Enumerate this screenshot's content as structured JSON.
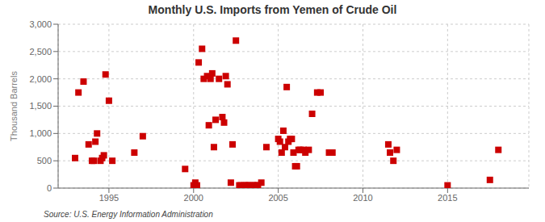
{
  "chart_data": {
    "type": "scatter",
    "title": "Monthly U.S. Imports from Yemen of Crude Oil",
    "ylabel": "Thousand Barrels",
    "annotations": [
      "Source: U.S. Energy Information Administration"
    ],
    "color": "#cc0000",
    "marker": "square",
    "grid": true,
    "xlim": [
      1992.0,
      2019.8
    ],
    "ylim": [
      0,
      3000
    ],
    "xticks": [
      1995,
      2000,
      2005,
      2010,
      2015
    ],
    "yticks": [
      0,
      500,
      {
        "value": 1000,
        "label": "1,000"
      },
      {
        "value": 1500,
        "label": "1,500"
      },
      {
        "value": 2000,
        "label": "2,000"
      },
      {
        "value": 2500,
        "label": "2,500"
      },
      {
        "value": 3000,
        "label": "3,000"
      }
    ],
    "x": [
      1993.0,
      1993.2,
      1993.5,
      1993.8,
      1994.0,
      1994.1,
      1994.2,
      1994.3,
      1994.5,
      1994.6,
      1994.7,
      1994.8,
      1995.0,
      1995.2,
      1996.5,
      1997.0,
      1999.5,
      2000.0,
      2000.1,
      2000.2,
      2000.3,
      2000.5,
      2000.6,
      2000.8,
      2000.9,
      2001.0,
      2001.1,
      2001.2,
      2001.3,
      2001.5,
      2001.7,
      2001.8,
      2001.9,
      2002.0,
      2002.2,
      2002.3,
      2002.5,
      2002.7,
      2002.8,
      2003.0,
      2003.1,
      2003.2,
      2003.3,
      2003.5,
      2003.6,
      2003.7,
      2003.8,
      2004.0,
      2004.3,
      2005.0,
      2005.1,
      2005.2,
      2005.3,
      2005.4,
      2005.5,
      2005.6,
      2005.7,
      2005.8,
      2005.9,
      2006.0,
      2006.1,
      2006.2,
      2006.3,
      2006.5,
      2006.6,
      2006.8,
      2007.0,
      2007.3,
      2007.5,
      2008.0,
      2008.2,
      2011.5,
      2011.6,
      2011.8,
      2012.0,
      2015.0,
      2017.5,
      2018.0
    ],
    "values": [
      550,
      1750,
      1950,
      800,
      500,
      500,
      850,
      1000,
      500,
      550,
      600,
      2080,
      1600,
      500,
      650,
      950,
      350,
      50,
      100,
      50,
      2300,
      2550,
      2000,
      2050,
      1150,
      2000,
      2100,
      750,
      1250,
      2000,
      1300,
      1200,
      2050,
      1900,
      100,
      800,
      2700,
      50,
      50,
      50,
      50,
      50,
      50,
      50,
      50,
      50,
      50,
      100,
      750,
      900,
      850,
      650,
      1050,
      750,
      1850,
      850,
      900,
      900,
      650,
      400,
      400,
      700,
      700,
      700,
      650,
      700,
      1360,
      1750,
      1750,
      650,
      650,
      800,
      650,
      500,
      700,
      50,
      150,
      700
    ]
  }
}
